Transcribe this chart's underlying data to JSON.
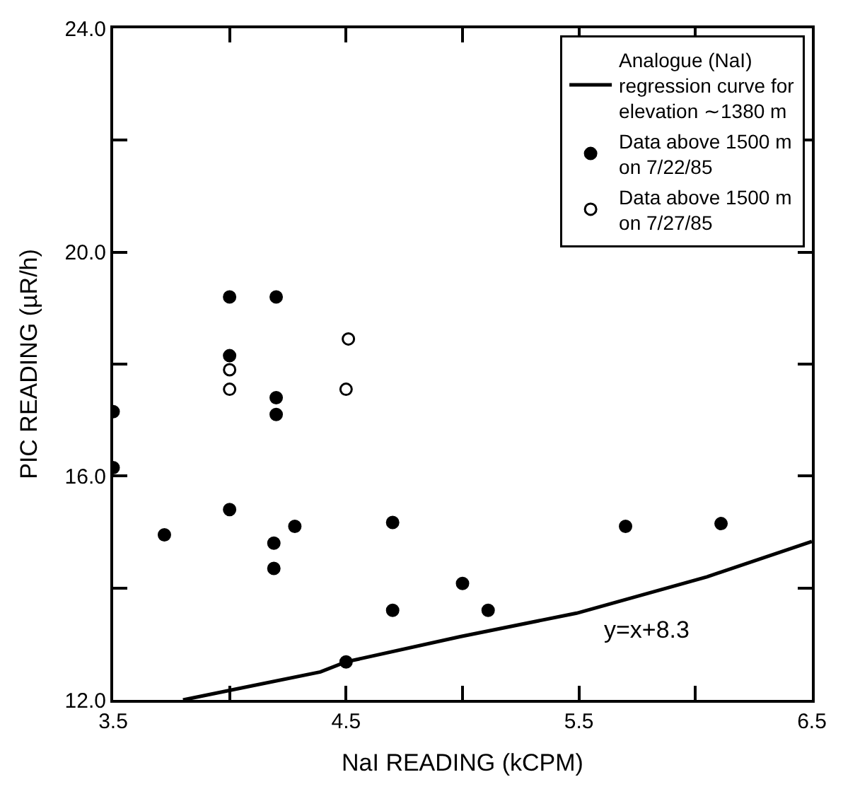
{
  "chart_data": {
    "type": "scatter",
    "xlabel": "NaI READING (kCPM)",
    "ylabel": "PIC READING (µR/h)",
    "xlim": [
      3.5,
      6.5
    ],
    "ylim": [
      12,
      24
    ],
    "xticks": [
      {
        "value": 3.5,
        "label": "3.5"
      },
      {
        "value": 4.0,
        "label": null
      },
      {
        "value": 4.5,
        "label": "4.5"
      },
      {
        "value": 5.0,
        "label": null
      },
      {
        "value": 5.5,
        "label": "5.5"
      },
      {
        "value": 6.0,
        "label": null
      },
      {
        "value": 6.5,
        "label": "6.5"
      }
    ],
    "yticks": [
      {
        "value": 12,
        "label": "12.0"
      },
      {
        "value": 14,
        "label": null
      },
      {
        "value": 16,
        "label": "16.0"
      },
      {
        "value": 18,
        "label": null
      },
      {
        "value": 20,
        "label": "20.0"
      },
      {
        "value": 22,
        "label": null
      },
      {
        "value": 24,
        "label": "24.0"
      }
    ],
    "legend": "top right",
    "series": [
      {
        "name": "Analogue (NaI)\nregression curve for\nelevation ∼1380 m",
        "type": "line",
        "color": "#000000",
        "marker": "none",
        "line_style": "solid",
        "x": [
          3.8,
          4.0,
          4.39,
          4.5,
          4.99,
          5.49,
          6.05,
          6.5
        ],
        "values": [
          12.0,
          12.17,
          12.5,
          12.68,
          13.13,
          13.55,
          14.2,
          14.83
        ]
      },
      {
        "name": "Data above 1500 m\non 7/22/85",
        "color": "#000000",
        "marker": "circle",
        "x": [
          3.5,
          3.5,
          3.72,
          4.0,
          4.2,
          4.0,
          4.2,
          4.2,
          4.0,
          4.28,
          4.19,
          4.19,
          4.7,
          4.7,
          5.0,
          5.11,
          5.7,
          6.11,
          4.5
        ],
        "values": [
          17.15,
          16.15,
          14.95,
          19.2,
          19.2,
          18.15,
          17.4,
          17.1,
          15.4,
          15.1,
          14.8,
          14.35,
          15.17,
          13.6,
          14.08,
          13.6,
          15.1,
          15.15,
          12.68
        ]
      },
      {
        "name": "Data above 1500 m\non 7/27/85",
        "color": "#000000",
        "marker": "circle-open",
        "x": [
          4.0,
          4.0,
          4.51,
          4.5
        ],
        "values": [
          17.9,
          17.55,
          18.45,
          17.55
        ]
      }
    ],
    "annotations": [
      "y=x+8.3"
    ]
  }
}
